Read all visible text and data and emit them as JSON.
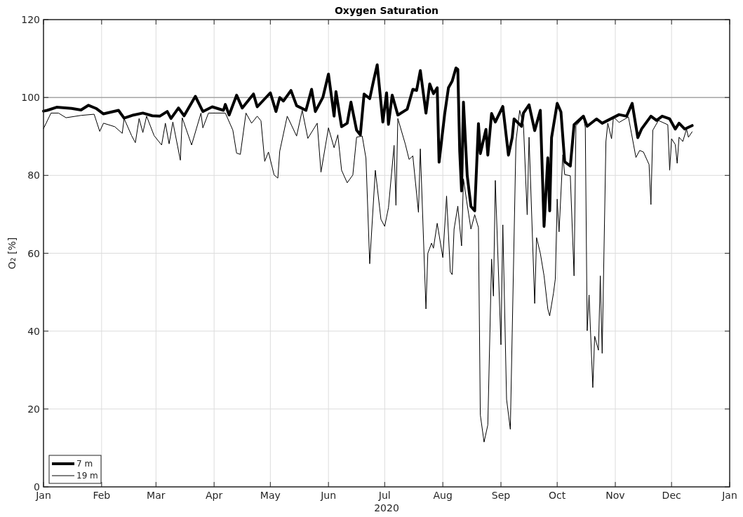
{
  "chart_data": {
    "type": "line",
    "title": "Oxygen Saturation",
    "xlabel": "2020",
    "ylabel": "O₂ [%]",
    "xlim": [
      "2020-01-01",
      "2021-01-01"
    ],
    "xticks": [
      {
        "value": "2020-01-01",
        "label": "Jan"
      },
      {
        "value": "2020-02-01",
        "label": "Feb"
      },
      {
        "value": "2020-03-01",
        "label": "Mar"
      },
      {
        "value": "2020-04-01",
        "label": "Apr"
      },
      {
        "value": "2020-05-01",
        "label": "May"
      },
      {
        "value": "2020-06-01",
        "label": "Jun"
      },
      {
        "value": "2020-07-01",
        "label": "Jul"
      },
      {
        "value": "2020-08-01",
        "label": "Aug"
      },
      {
        "value": "2020-09-01",
        "label": "Sep"
      },
      {
        "value": "2020-10-01",
        "label": "Oct"
      },
      {
        "value": "2020-11-01",
        "label": "Nov"
      },
      {
        "value": "2020-12-01",
        "label": "Dec"
      },
      {
        "value": "2021-01-01",
        "label": "Jan"
      }
    ],
    "ylim": [
      0,
      120
    ],
    "yticks": [
      0,
      20,
      40,
      60,
      80,
      100,
      120
    ],
    "grid": true,
    "legend": "bottom left",
    "line_style": "solid",
    "ref_lines": [
      {
        "axis": "y",
        "value": 100,
        "color": "#888888"
      }
    ],
    "series": [
      {
        "name": "7 m",
        "color": "#000000",
        "x": [
          "2020-01-01",
          "2020-01-03",
          "2020-01-08",
          "2020-01-16",
          "2020-01-21",
          "2020-01-25",
          "2020-01-29",
          "2020-02-02",
          "2020-02-10",
          "2020-02-13",
          "2020-02-18",
          "2020-02-23",
          "2020-02-28",
          "2020-03-03",
          "2020-03-07",
          "2020-03-09",
          "2020-03-13",
          "2020-03-16",
          "2020-03-22",
          "2020-03-26",
          "2020-03-31",
          "2020-04-06",
          "2020-04-07",
          "2020-04-09",
          "2020-04-13",
          "2020-04-16",
          "2020-04-22",
          "2020-04-24",
          "2020-05-01",
          "2020-05-04",
          "2020-05-06",
          "2020-05-08",
          "2020-05-12",
          "2020-05-15",
          "2020-05-20",
          "2020-05-23",
          "2020-05-25",
          "2020-05-29",
          "2020-06-01",
          "2020-06-04",
          "2020-06-05",
          "2020-06-08",
          "2020-06-11",
          "2020-06-13",
          "2020-06-16",
          "2020-06-18",
          "2020-06-20",
          "2020-06-23",
          "2020-06-25",
          "2020-06-27",
          "2020-06-30",
          "2020-07-02",
          "2020-07-03",
          "2020-07-05",
          "2020-07-08",
          "2020-07-13",
          "2020-07-16",
          "2020-07-18",
          "2020-07-20",
          "2020-07-23",
          "2020-07-25",
          "2020-07-27",
          "2020-07-29",
          "2020-07-30",
          "2020-08-02",
          "2020-08-04",
          "2020-08-06",
          "2020-08-08",
          "2020-08-09",
          "2020-08-10",
          "2020-08-11",
          "2020-08-12",
          "2020-08-14",
          "2020-08-16",
          "2020-08-18",
          "2020-08-20",
          "2020-08-21",
          "2020-08-24",
          "2020-08-25",
          "2020-08-27",
          "2020-08-29",
          "2020-09-02",
          "2020-09-05",
          "2020-09-07",
          "2020-09-08",
          "2020-09-12",
          "2020-09-13",
          "2020-09-16",
          "2020-09-19",
          "2020-09-22",
          "2020-09-24",
          "2020-09-26",
          "2020-09-27",
          "2020-09-28",
          "2020-10-01",
          "2020-10-03",
          "2020-10-05",
          "2020-10-08",
          "2020-10-10",
          "2020-10-15",
          "2020-10-17",
          "2020-10-22",
          "2020-10-25",
          "2020-11-03",
          "2020-11-07",
          "2020-11-10",
          "2020-11-13",
          "2020-11-15",
          "2020-11-20",
          "2020-11-23",
          "2020-11-26",
          "2020-11-30",
          "2020-12-03",
          "2020-12-05",
          "2020-12-08",
          "2020-12-12"
        ],
        "values": [
          96.5,
          96.7,
          97.5,
          97.2,
          96.8,
          98,
          97.2,
          95.8,
          96.7,
          94.7,
          95.5,
          96,
          95.3,
          95.2,
          96.4,
          94.6,
          97.3,
          95.3,
          100.3,
          96.4,
          97.6,
          96.7,
          98.2,
          95.5,
          100.6,
          97.3,
          100.9,
          97.6,
          101.2,
          96.4,
          100,
          99.1,
          101.8,
          97.9,
          96.7,
          102.1,
          96.4,
          100,
          106,
          95.2,
          101.5,
          92.5,
          93.4,
          98.8,
          91.6,
          90.4,
          100.9,
          99.7,
          104.2,
          108.4,
          93.7,
          101.2,
          93.1,
          100.6,
          95.5,
          97,
          102.1,
          101.8,
          106.9,
          96,
          103.5,
          101,
          102.5,
          83.4,
          95.8,
          102.5,
          104.2,
          107.6,
          107.2,
          86.3,
          76,
          98.8,
          80,
          72,
          70.9,
          93.3,
          85.6,
          91.8,
          85.2,
          95.9,
          93.7,
          97.7,
          85.2,
          89.7,
          94.5,
          92.6,
          96,
          98.1,
          91.5,
          96.7,
          66.9,
          84.5,
          70.9,
          89.7,
          98.5,
          96.3,
          83.5,
          82.4,
          93,
          95.2,
          92.6,
          94.5,
          93.4,
          95.6,
          95.2,
          98.5,
          89.7,
          91.9,
          95.2,
          94.1,
          95.2,
          94.5,
          91.9,
          93.4,
          91.9,
          92.8
        ]
      },
      {
        "name": "19 m",
        "color": "#000000",
        "x": [
          "2020-01-01",
          "2020-01-05",
          "2020-01-09",
          "2020-01-13",
          "2020-01-21",
          "2020-01-28",
          "2020-01-31",
          "2020-02-02",
          "2020-02-08",
          "2020-02-12",
          "2020-02-13",
          "2020-02-17",
          "2020-02-19",
          "2020-02-21",
          "2020-02-23",
          "2020-02-25",
          "2020-02-29",
          "2020-03-04",
          "2020-03-06",
          "2020-03-08",
          "2020-03-10",
          "2020-03-14",
          "2020-03-15",
          "2020-03-20",
          "2020-03-25",
          "2020-03-26",
          "2020-03-29",
          "2020-04-07",
          "2020-04-11",
          "2020-04-13",
          "2020-04-15",
          "2020-04-18",
          "2020-04-21",
          "2020-04-24",
          "2020-04-26",
          "2020-04-28",
          "2020-04-30",
          "2020-05-03",
          "2020-05-05",
          "2020-05-06",
          "2020-05-10",
          "2020-05-15",
          "2020-05-18",
          "2020-05-21",
          "2020-05-26",
          "2020-05-28",
          "2020-06-01",
          "2020-06-04",
          "2020-06-06",
          "2020-06-08",
          "2020-06-11",
          "2020-06-14",
          "2020-06-16",
          "2020-06-19",
          "2020-06-21",
          "2020-06-23",
          "2020-06-26",
          "2020-06-29",
          "2020-07-01",
          "2020-07-03",
          "2020-07-06",
          "2020-07-07",
          "2020-07-08",
          "2020-07-12",
          "2020-07-14",
          "2020-07-16",
          "2020-07-19",
          "2020-07-20",
          "2020-07-23",
          "2020-07-24",
          "2020-07-26",
          "2020-07-27",
          "2020-07-29",
          "2020-08-01",
          "2020-08-03",
          "2020-08-05",
          "2020-08-06",
          "2020-08-07",
          "2020-08-09",
          "2020-08-11",
          "2020-08-12",
          "2020-08-14",
          "2020-08-16",
          "2020-08-18",
          "2020-08-20",
          "2020-08-21",
          "2020-08-23",
          "2020-08-25",
          "2020-08-27",
          "2020-08-28",
          "2020-08-29",
          "2020-09-01",
          "2020-09-02",
          "2020-09-04",
          "2020-09-06",
          "2020-09-09",
          "2020-09-11",
          "2020-09-13",
          "2020-09-15",
          "2020-09-16",
          "2020-09-19",
          "2020-09-20",
          "2020-09-22",
          "2020-09-24",
          "2020-09-26",
          "2020-09-27",
          "2020-09-29",
          "2020-09-30",
          "2020-10-01",
          "2020-10-02",
          "2020-10-04",
          "2020-10-05",
          "2020-10-08",
          "2020-10-10",
          "2020-10-11",
          "2020-10-15",
          "2020-10-16",
          "2020-10-17",
          "2020-10-18",
          "2020-10-20",
          "2020-10-21",
          "2020-10-23",
          "2020-10-24",
          "2020-10-25",
          "2020-10-27",
          "2020-10-28",
          "2020-10-30",
          "2020-10-31",
          "2020-11-03",
          "2020-11-08",
          "2020-11-12",
          "2020-11-14",
          "2020-11-16",
          "2020-11-19",
          "2020-11-20",
          "2020-11-21",
          "2020-11-24",
          "2020-11-29",
          "2020-11-30",
          "2020-12-01",
          "2020-12-03",
          "2020-12-04",
          "2020-12-05",
          "2020-12-07",
          "2020-12-09",
          "2020-12-10",
          "2020-12-12"
        ],
        "values": [
          92,
          96,
          96,
          94.8,
          95.4,
          95.7,
          91.3,
          93.4,
          92.5,
          90.8,
          94.6,
          90.2,
          88.4,
          94.6,
          91,
          95.2,
          90.2,
          87.8,
          93.4,
          88.1,
          93.7,
          83.9,
          94.8,
          87.8,
          96,
          92.2,
          96,
          96,
          91.6,
          85.7,
          85.4,
          96,
          93.4,
          95.2,
          94,
          83.6,
          86,
          80.1,
          79.3,
          86.2,
          95.2,
          90.1,
          96.7,
          89.5,
          93.4,
          80.8,
          92.2,
          87.1,
          90.4,
          81.3,
          78.1,
          80.1,
          89.8,
          90.1,
          84.4,
          57.3,
          81.3,
          68.7,
          66.9,
          71.7,
          87.7,
          72.3,
          94.6,
          88,
          84.1,
          85,
          70.5,
          86.8,
          45.7,
          60,
          62.6,
          61.3,
          67.7,
          58.9,
          74.7,
          55.2,
          54.5,
          66.2,
          72.1,
          61.9,
          79.1,
          72.5,
          66.2,
          69.9,
          66.6,
          18.5,
          11.5,
          15.9,
          58.5,
          49,
          78.7,
          36.5,
          67.3,
          22.5,
          14.8,
          88.7,
          96.7,
          93,
          69.9,
          89.8,
          47.1,
          64,
          60,
          54.2,
          45.7,
          43.9,
          49.7,
          53.4,
          73.9,
          65.5,
          85.3,
          80.2,
          79.9,
          54.2,
          92.7,
          94.9,
          92.3,
          40.1,
          49.3,
          25.5,
          38.7,
          35.1,
          54.2,
          34.3,
          88.7,
          93.4,
          89.4,
          95,
          93.6,
          95,
          84.6,
          86.4,
          86,
          82.8,
          72.5,
          91.6,
          94.1,
          93,
          81.3,
          89.4,
          87.9,
          83.1,
          89.8,
          88.7,
          91.9,
          89.8,
          91.2
        ]
      }
    ]
  }
}
